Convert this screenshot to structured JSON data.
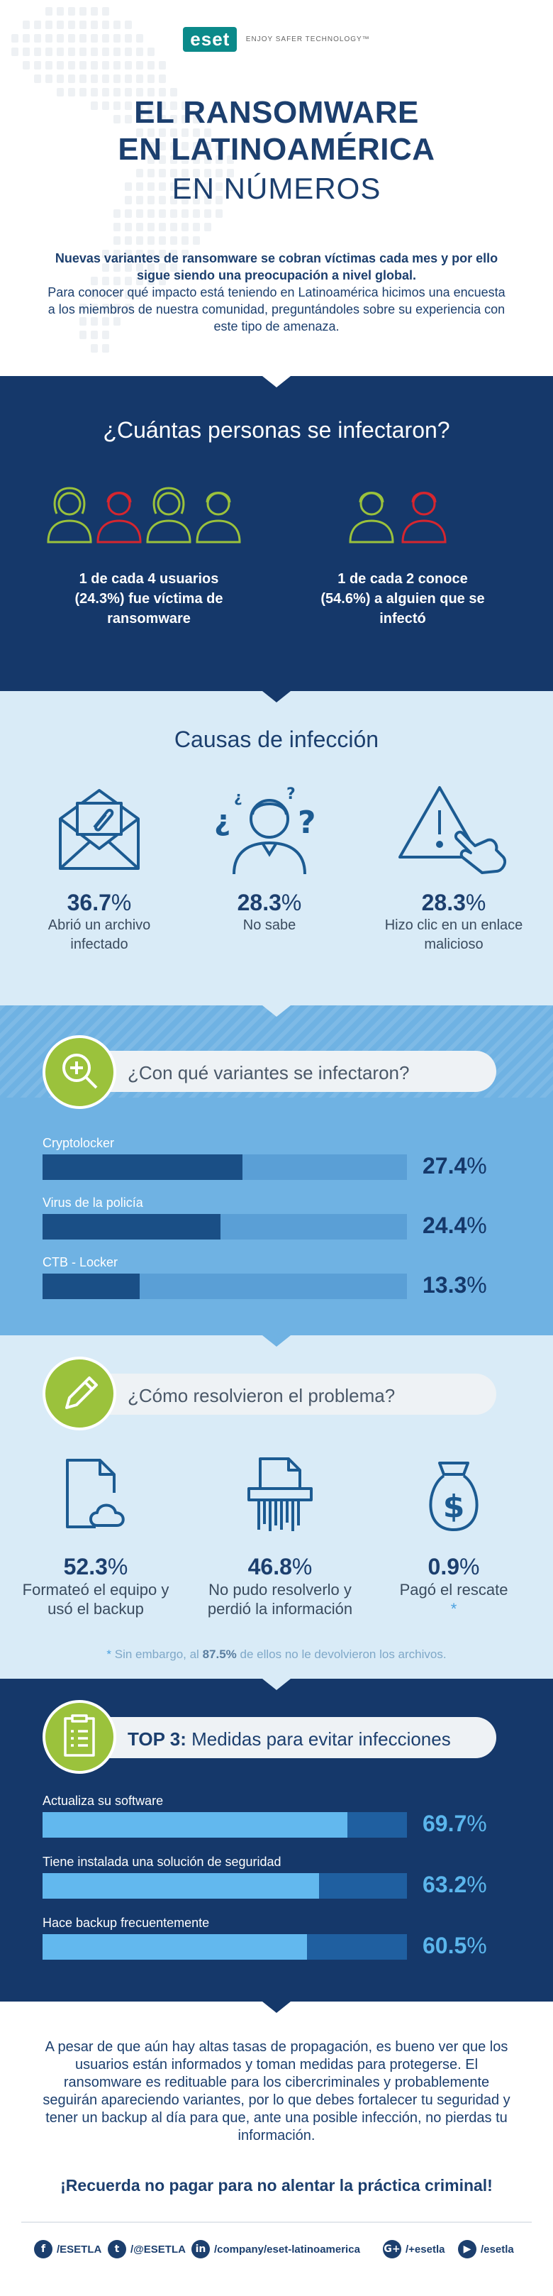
{
  "header": {
    "logo": "eset",
    "tagline": "ENJOY SAFER TECHNOLOGY™",
    "title_line1": "EL RANSOMWARE",
    "title_line2": "EN LATINOAMÉRICA",
    "title_line3": "EN NÚMEROS",
    "intro_bold": "Nuevas variantes de ransomware se cobran víctimas cada mes y por ello sigue siendo una preocupación a nivel global.",
    "intro": "Para conocer qué impacto está teniendo en Latinoamérica hicimos una encuesta a los miembros de nuestra comunidad, preguntándoles sobre su experiencia con este tipo de amenaza."
  },
  "infected": {
    "heading": "¿Cuántas personas se infectaron?",
    "stat1": "1 de cada 4 usuarios (24.3%) fue víctima de ransomware",
    "stat2": "1 de cada 2 conoce (54.6%) a alguien que se infectó",
    "colors": {
      "green": "#9bc23c",
      "red": "#d6262f"
    }
  },
  "causes": {
    "heading": "Causas de infección",
    "items": [
      {
        "value": "36.7",
        "label": "Abrió un archivo infectado",
        "icon": "envelope-attachment-icon"
      },
      {
        "value": "28.3",
        "label": "No sabe",
        "icon": "confused-person-icon"
      },
      {
        "value": "28.3",
        "label": "Hizo clic en un enlace malicioso",
        "icon": "warning-click-icon"
      }
    ]
  },
  "variants": {
    "heading": "¿Con qué variantes se infectaron?",
    "items": [
      {
        "label": "Cryptolocker",
        "value": "27.4",
        "fraction": 0.274
      },
      {
        "label": "Virus de la policía",
        "value": "24.4",
        "fraction": 0.244
      },
      {
        "label": "CTB - Locker",
        "value": "13.3",
        "fraction": 0.133
      }
    ]
  },
  "resolved": {
    "heading": "¿Cómo resolvieron el problema?",
    "items": [
      {
        "value": "52.3",
        "label": "Formateó el equipo y usó el backup",
        "icon": "cloud-file-icon"
      },
      {
        "value": "46.8",
        "label": "No pudo resolverlo y perdió la información",
        "icon": "shredder-icon"
      },
      {
        "value": "0.9",
        "label": "Pagó el rescate",
        "icon": "money-bag-icon"
      }
    ],
    "note_pre": "Sin embargo, al",
    "note_bold": "87.5%",
    "note_post": "de ellos no le devolvieron los archivos."
  },
  "top3": {
    "heading_bold": "TOP 3:",
    "heading": "Medidas para evitar infecciones",
    "items": [
      {
        "label": "Actualiza su software",
        "value": "69.7",
        "fraction": 0.697
      },
      {
        "label": "Tiene instalada una solución de seguridad",
        "value": "63.2",
        "fraction": 0.632
      },
      {
        "label": "Hace backup frecuentemente",
        "value": "60.5",
        "fraction": 0.605
      }
    ]
  },
  "footer": {
    "outro": "A pesar de que aún hay altas tasas de propagación, es bueno ver que los usuarios están informados y toman medidas para protegerse. El ransomware es redituable para los cibercriminales y probablemente seguirán apareciendo variantes, por lo que debes fortalecer tu seguridad y tener un backup al día para que, ante una posible infección, no pierdas tu información.",
    "cta": "¡Recuerda no pagar para no alentar la práctica criminal!",
    "social": [
      {
        "icon": "facebook-icon",
        "glyph": "f",
        "text": "/ESETLA"
      },
      {
        "icon": "twitter-icon",
        "glyph": "t",
        "text": "/@ESETLA"
      },
      {
        "icon": "linkedin-icon",
        "glyph": "in",
        "text": "/company/eset-latinoamerica"
      },
      {
        "icon": "googleplus-icon",
        "glyph": "G+",
        "text": "/+esetla"
      },
      {
        "icon": "youtube-icon",
        "glyph": "▶",
        "text": "/esetla"
      }
    ]
  }
}
